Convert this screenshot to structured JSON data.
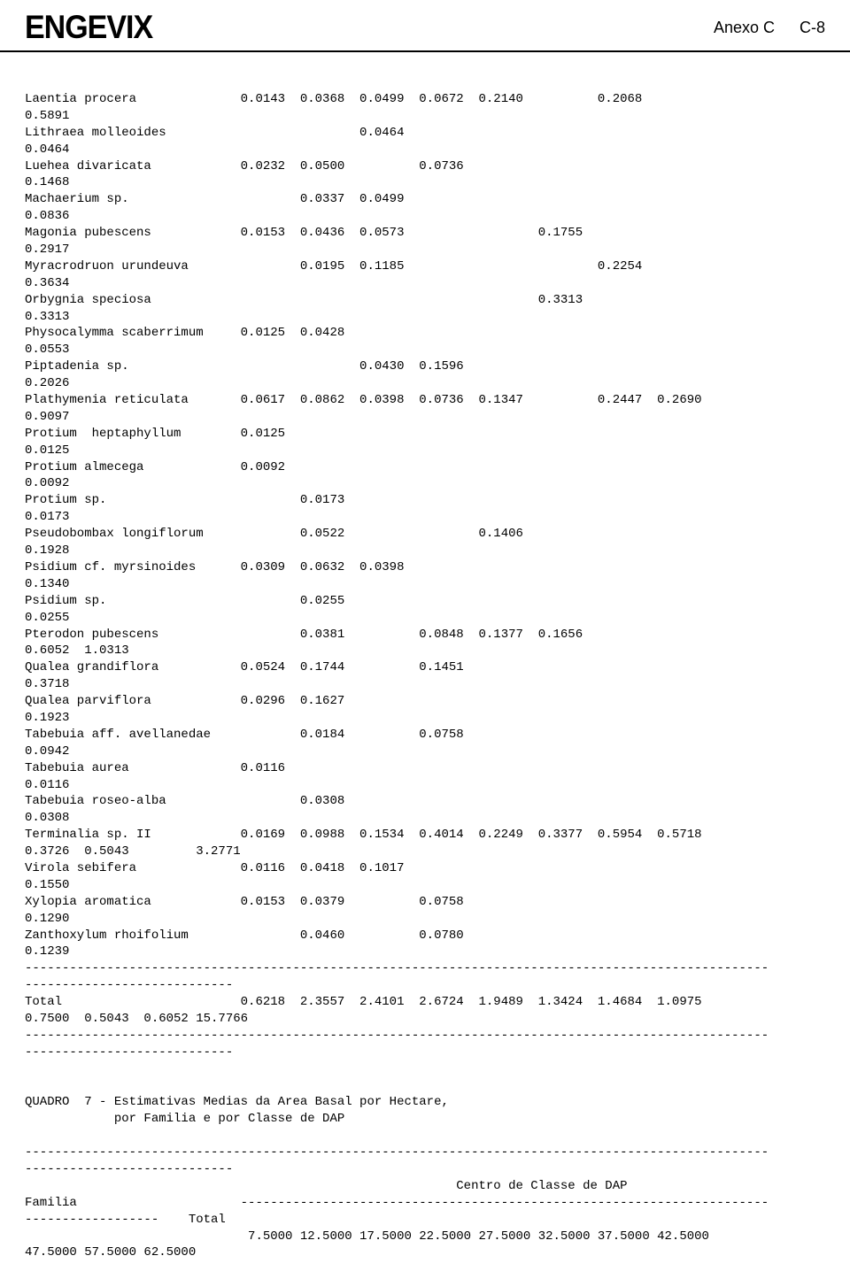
{
  "header": {
    "logo": "ENGEVIX",
    "anexo": "Anexo C",
    "page": "C-8"
  },
  "content": "Laentia procera              0.0143  0.0368  0.0499  0.0672  0.2140          0.2068\n0.5891\nLithraea molleoides                          0.0464\n0.0464\nLuehea divaricata            0.0232  0.0500          0.0736\n0.1468\nMachaerium sp.                       0.0337  0.0499\n0.0836\nMagonia pubescens            0.0153  0.0436  0.0573                  0.1755\n0.2917\nMyracrodruon urundeuva               0.0195  0.1185                          0.2254\n0.3634\nOrbygnia speciosa                                                    0.3313\n0.3313\nPhysocalymma scaberrimum     0.0125  0.0428\n0.0553\nPiptadenia sp.                               0.0430  0.1596\n0.2026\nPlathymenia reticulata       0.0617  0.0862  0.0398  0.0736  0.1347          0.2447  0.2690\n0.9097\nProtium  heptaphyllum        0.0125\n0.0125\nProtium almecega             0.0092\n0.0092\nProtium sp.                          0.0173\n0.0173\nPseudobombax longiflorum             0.0522                  0.1406\n0.1928\nPsidium cf. myrsinoides      0.0309  0.0632  0.0398\n0.1340\nPsidium sp.                          0.0255\n0.0255\nPterodon pubescens                   0.0381          0.0848  0.1377  0.1656\n0.6052  1.0313\nQualea grandiflora           0.0524  0.1744          0.1451\n0.3718\nQualea parviflora            0.0296  0.1627\n0.1923\nTabebuia aff. avellanedae            0.0184          0.0758\n0.0942\nTabebuia aurea               0.0116\n0.0116\nTabebuia roseo-alba                  0.0308\n0.0308\nTerminalia sp. II            0.0169  0.0988  0.1534  0.4014  0.2249  0.3377  0.5954  0.5718\n0.3726  0.5043         3.2771\nVirola sebifera              0.0116  0.0418  0.1017\n0.1550\nXylopia aromatica            0.0153  0.0379          0.0758\n0.1290\nZanthoxylum rhoifolium               0.0460          0.0780\n0.1239\n----------------------------------------------------------------------------------------------------\n----------------------------\nTotal                        0.6218  2.3557  2.4101  2.6724  1.9489  1.3424  1.4684  1.0975\n0.7500  0.5043  0.6052 15.7766\n----------------------------------------------------------------------------------------------------\n----------------------------\n\n\nQUADRO  7 - Estimativas Medias da Area Basal por Hectare,\n            por Familia e por Classe de DAP\n\n----------------------------------------------------------------------------------------------------\n----------------------------\n                                                          Centro de Classe de DAP\nFamilia                      -----------------------------------------------------------------------\n------------------    Total\n                              7.5000 12.5000 17.5000 22.5000 27.5000 32.5000 37.5000 42.5000\n47.5000 57.5000 62.5000"
}
